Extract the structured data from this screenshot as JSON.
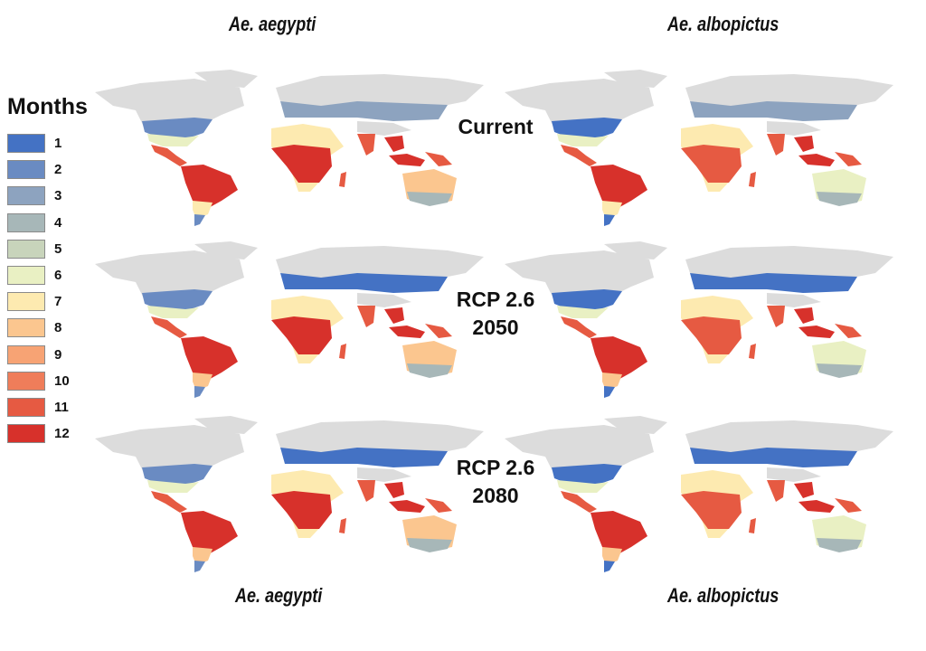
{
  "columns": [
    {
      "id": "aegypti",
      "label": "Ae. aegypti"
    },
    {
      "id": "albopictus",
      "label": "Ae. albopictus"
    }
  ],
  "rows": [
    {
      "id": "current",
      "label_line1": "Current",
      "label_line2": ""
    },
    {
      "id": "rcp26_2050",
      "label_line1": "RCP 2.6",
      "label_line2": "2050"
    },
    {
      "id": "rcp26_2080",
      "label_line1": "RCP 2.6",
      "label_line2": "2080"
    }
  ],
  "legend": {
    "title": "Months",
    "items": [
      {
        "value": "1",
        "color": "#4472c4"
      },
      {
        "value": "2",
        "color": "#6a8bc2"
      },
      {
        "value": "3",
        "color": "#8da3bf"
      },
      {
        "value": "4",
        "color": "#a7b7b8"
      },
      {
        "value": "5",
        "color": "#c8d4bb"
      },
      {
        "value": "6",
        "color": "#e9f0c3"
      },
      {
        "value": "7",
        "color": "#fdeab0"
      },
      {
        "value": "8",
        "color": "#fbc68f"
      },
      {
        "value": "9",
        "color": "#f7a374"
      },
      {
        "value": "10",
        "color": "#ef7d5a"
      },
      {
        "value": "11",
        "color": "#e65a42"
      },
      {
        "value": "12",
        "color": "#d7312b"
      }
    ]
  },
  "colors": {
    "land_unsuitable": "#dcdcdc",
    "background": "#ffffff"
  }
}
